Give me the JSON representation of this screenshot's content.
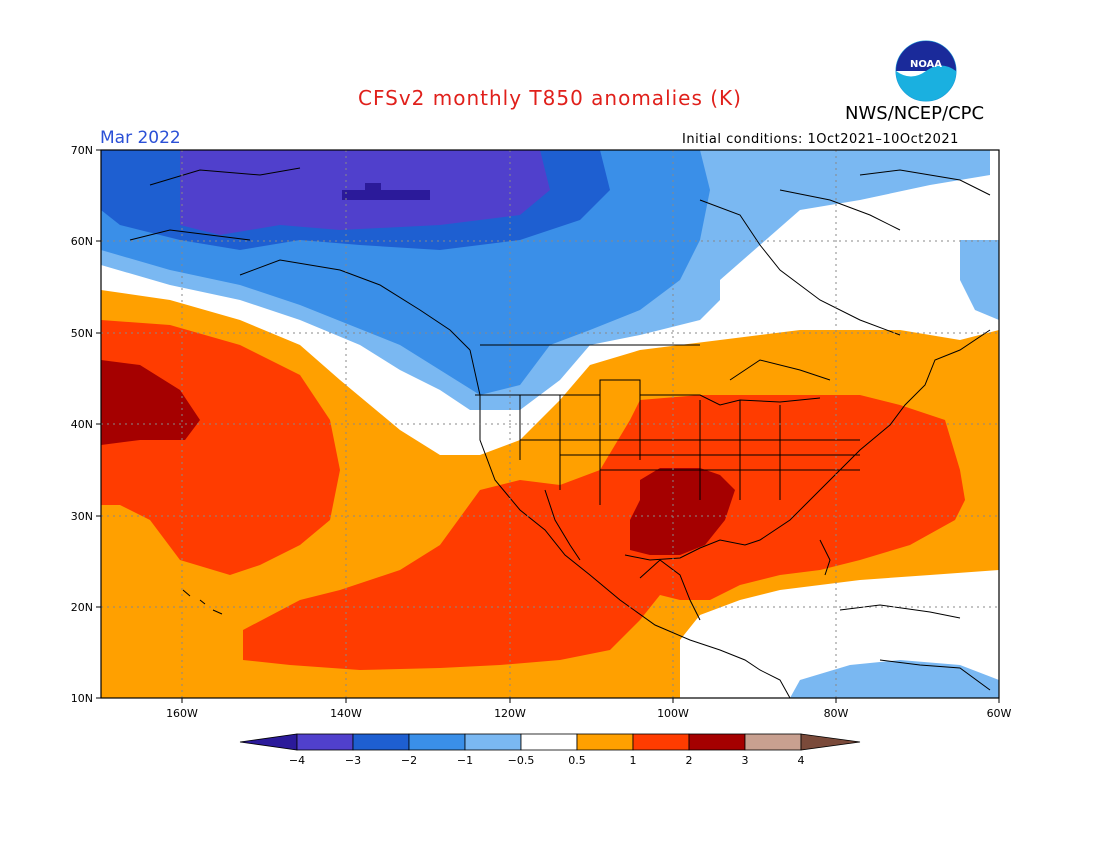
{
  "header": {
    "title": "CFSv2 monthly T850 anomalies (K)",
    "agency": "NWS/NCEP/CPC",
    "period": "Mar 2022",
    "initial_conditions": "Initial conditions: 1Oct2021–10Oct2021",
    "logo_text": "NOAA"
  },
  "map": {
    "lat_labels": [
      "70N",
      "60N",
      "50N",
      "40N",
      "30N",
      "20N",
      "10N"
    ],
    "lon_labels": [
      "160W",
      "140W",
      "120W",
      "100W",
      "80W",
      "60W"
    ]
  },
  "colorbar": {
    "labels": [
      "−4",
      "−3",
      "−2",
      "−1",
      "−0.5",
      "0.5",
      "1",
      "2",
      "3",
      "4"
    ],
    "colors": [
      "#2b1a9a",
      "#5040cc",
      "#1e5fd1",
      "#3a8fe8",
      "#7ab8f2",
      "#ffffff",
      "#ffa000",
      "#ff3c00",
      "#a50000",
      "#c8a090",
      "#7a4a3a"
    ]
  },
  "palette": {
    "anom_m4": "#2b1a9a",
    "anom_m3": "#5040cc",
    "anom_m2": "#1e5fd1",
    "anom_m1": "#3a8fe8",
    "anom_m05": "#7ab8f2",
    "anom_0": "#ffffff",
    "anom_p05": "#ffa000",
    "anom_p1": "#ff3c00",
    "anom_p2": "#a50000"
  }
}
